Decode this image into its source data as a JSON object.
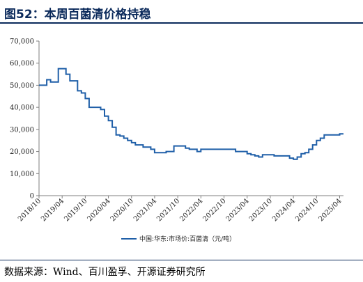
{
  "header": {
    "title": "图52：本周百菌清价格持稳"
  },
  "footer": {
    "source": "数据来源：Wind、百川盈孚、开源证券研究所"
  },
  "chart_data": {
    "type": "line",
    "title": "",
    "xlabel": "",
    "ylabel": "",
    "ylim": [
      0,
      70000
    ],
    "y_ticks": [
      0,
      10000,
      20000,
      30000,
      40000,
      50000,
      60000,
      70000
    ],
    "y_tick_labels": [
      "0",
      "10,000",
      "20,000",
      "30,000",
      "40,000",
      "50,000",
      "60,000",
      "70,000"
    ],
    "x_range": [
      "2018-10",
      "2025-05"
    ],
    "x_ticks": [
      "2018-10",
      "2019-04",
      "2019-10",
      "2020-04",
      "2020-10",
      "2021-04",
      "2021-10",
      "2022-04",
      "2022-10",
      "2023-04",
      "2023-10",
      "2024-04",
      "2024-10",
      "2025-04"
    ],
    "x_tick_labels": [
      "2018/10",
      "2019/04",
      "2019/10",
      "2020/04",
      "2020/10",
      "2021/04",
      "2021/10",
      "2022/04",
      "2022/10",
      "2023/04",
      "2023/10",
      "2024/04",
      "2024/10",
      "2025/04"
    ],
    "grid": false,
    "legend_position": "bottom",
    "series": [
      {
        "name": "中国:华东:市场价:百菌清（元/吨）",
        "color": "#1f5fa8",
        "x": [
          "2018-10",
          "2018-12",
          "2018-12",
          "2019-01",
          "2019-01",
          "2019-03",
          "2019-03",
          "2019-05",
          "2019-05",
          "2019-06",
          "2019-06",
          "2019-08",
          "2019-08",
          "2019-09",
          "2019-09",
          "2019-10",
          "2019-10",
          "2019-11",
          "2019-11",
          "2019-12",
          "2019-12",
          "2020-02",
          "2020-02",
          "2020-03",
          "2020-03",
          "2020-04",
          "2020-04",
          "2020-05",
          "2020-05",
          "2020-06",
          "2020-06",
          "2020-07",
          "2020-07",
          "2020-08",
          "2020-08",
          "2020-09",
          "2020-09",
          "2020-10",
          "2020-10",
          "2020-11",
          "2020-11",
          "2020-12",
          "2020-12",
          "2021-01",
          "2021-01",
          "2021-02",
          "2021-02",
          "2021-03",
          "2021-03",
          "2021-04",
          "2021-04",
          "2021-06",
          "2021-06",
          "2021-07",
          "2021-07",
          "2021-09",
          "2021-09",
          "2021-10",
          "2021-10",
          "2021-12",
          "2021-12",
          "2022-01",
          "2022-01",
          "2022-03",
          "2022-03",
          "2022-04",
          "2022-04",
          "2022-05",
          "2022-05",
          "2023-01",
          "2023-01",
          "2023-04",
          "2023-04",
          "2023-05",
          "2023-05",
          "2023-06",
          "2023-06",
          "2023-07",
          "2023-07",
          "2023-08",
          "2023-08",
          "2023-11",
          "2023-11",
          "2024-03",
          "2024-03",
          "2024-04",
          "2024-04",
          "2024-05",
          "2024-05",
          "2024-06",
          "2024-06",
          "2024-07",
          "2024-07",
          "2024-08",
          "2024-08",
          "2024-09",
          "2024-09",
          "2024-10",
          "2024-10",
          "2024-11",
          "2024-11",
          "2024-12",
          "2024-12",
          "2025-01",
          "2025-01",
          "2025-04",
          "2025-04",
          "2025-05"
        ],
        "values": [
          50000,
          50000,
          52500,
          52500,
          51500,
          51500,
          57500,
          57500,
          55000,
          55000,
          52000,
          52000,
          47500,
          47500,
          46500,
          46500,
          44000,
          44000,
          40000,
          40000,
          40000,
          40000,
          39000,
          39000,
          36000,
          36000,
          34000,
          34000,
          31000,
          31000,
          27500,
          27500,
          27000,
          27000,
          26000,
          26000,
          25000,
          25000,
          24000,
          24000,
          23000,
          23000,
          23000,
          23000,
          22000,
          22000,
          22000,
          22000,
          21000,
          21000,
          19500,
          19500,
          19500,
          19500,
          20000,
          20000,
          22500,
          22500,
          22500,
          22500,
          21500,
          21500,
          21000,
          21000,
          20000,
          20000,
          21000,
          21000,
          21000,
          21000,
          20000,
          20000,
          19000,
          19000,
          18500,
          18500,
          18000,
          18000,
          17500,
          17500,
          18500,
          18500,
          18000,
          18000,
          17000,
          17000,
          16500,
          16500,
          17500,
          17500,
          19000,
          19000,
          19500,
          19500,
          21000,
          21000,
          23000,
          23000,
          25000,
          25000,
          26000,
          26000,
          27500,
          27500,
          27500,
          27500,
          28000,
          28000
        ]
      }
    ]
  }
}
